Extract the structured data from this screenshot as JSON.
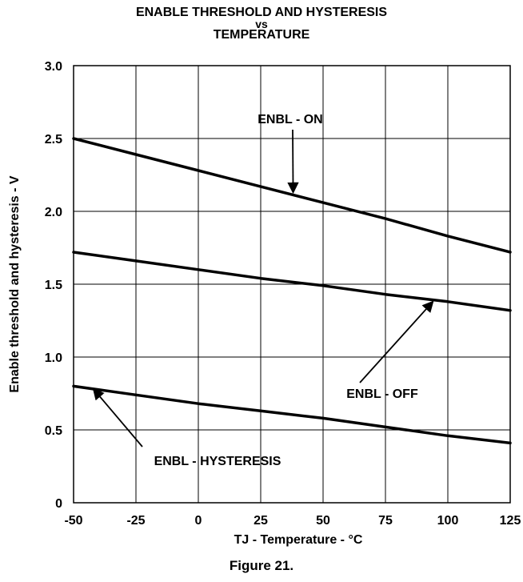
{
  "title_lines": [
    "ENABLE THRESHOLD AND HYSTERESIS",
    "vs",
    "TEMPERATURE"
  ],
  "figure_caption": "Figure 21.",
  "chart_data": {
    "type": "line",
    "title": "ENABLE THRESHOLD AND HYSTERESIS vs TEMPERATURE",
    "xlabel": "TJ - Temperature - °C",
    "ylabel": "Enable threshold and hysteresis - V",
    "xlim": [
      -50,
      125
    ],
    "ylim": [
      0,
      3.0
    ],
    "x_ticks": [
      -50,
      -25,
      0,
      25,
      50,
      75,
      100,
      125
    ],
    "x_tick_labels": [
      "-50",
      "-25",
      "0",
      "25",
      "50",
      "75",
      "100",
      "125"
    ],
    "y_ticks": [
      0,
      0.5,
      1.0,
      1.5,
      2.0,
      2.5,
      3.0
    ],
    "y_tick_labels": [
      "0",
      "0.5",
      "1.0",
      "1.5",
      "2.0",
      "2.5",
      "3.0"
    ],
    "grid": true,
    "series": [
      {
        "name": "ENBL - ON",
        "x": [
          -50,
          -25,
          0,
          25,
          50,
          75,
          100,
          125
        ],
        "values": [
          2.5,
          2.39,
          2.28,
          2.17,
          2.06,
          1.95,
          1.83,
          1.72
        ]
      },
      {
        "name": "ENBL - OFF",
        "x": [
          -50,
          -25,
          0,
          25,
          50,
          75,
          100,
          125
        ],
        "values": [
          1.72,
          1.66,
          1.6,
          1.54,
          1.49,
          1.43,
          1.38,
          1.32
        ]
      },
      {
        "name": "ENBL - HYSTERESIS",
        "x": [
          -50,
          -25,
          0,
          25,
          50,
          75,
          100,
          125
        ],
        "values": [
          0.8,
          0.74,
          0.68,
          0.63,
          0.58,
          0.52,
          0.46,
          0.41
        ]
      }
    ],
    "annotations": [
      {
        "text": "ENBL - ON",
        "arrow_to": [
          38,
          2.13
        ]
      },
      {
        "text": "ENBL - OFF",
        "arrow_to": [
          94,
          1.38
        ]
      },
      {
        "text": "ENBL - HYSTERESIS",
        "arrow_to": [
          -42,
          0.78
        ]
      }
    ]
  }
}
